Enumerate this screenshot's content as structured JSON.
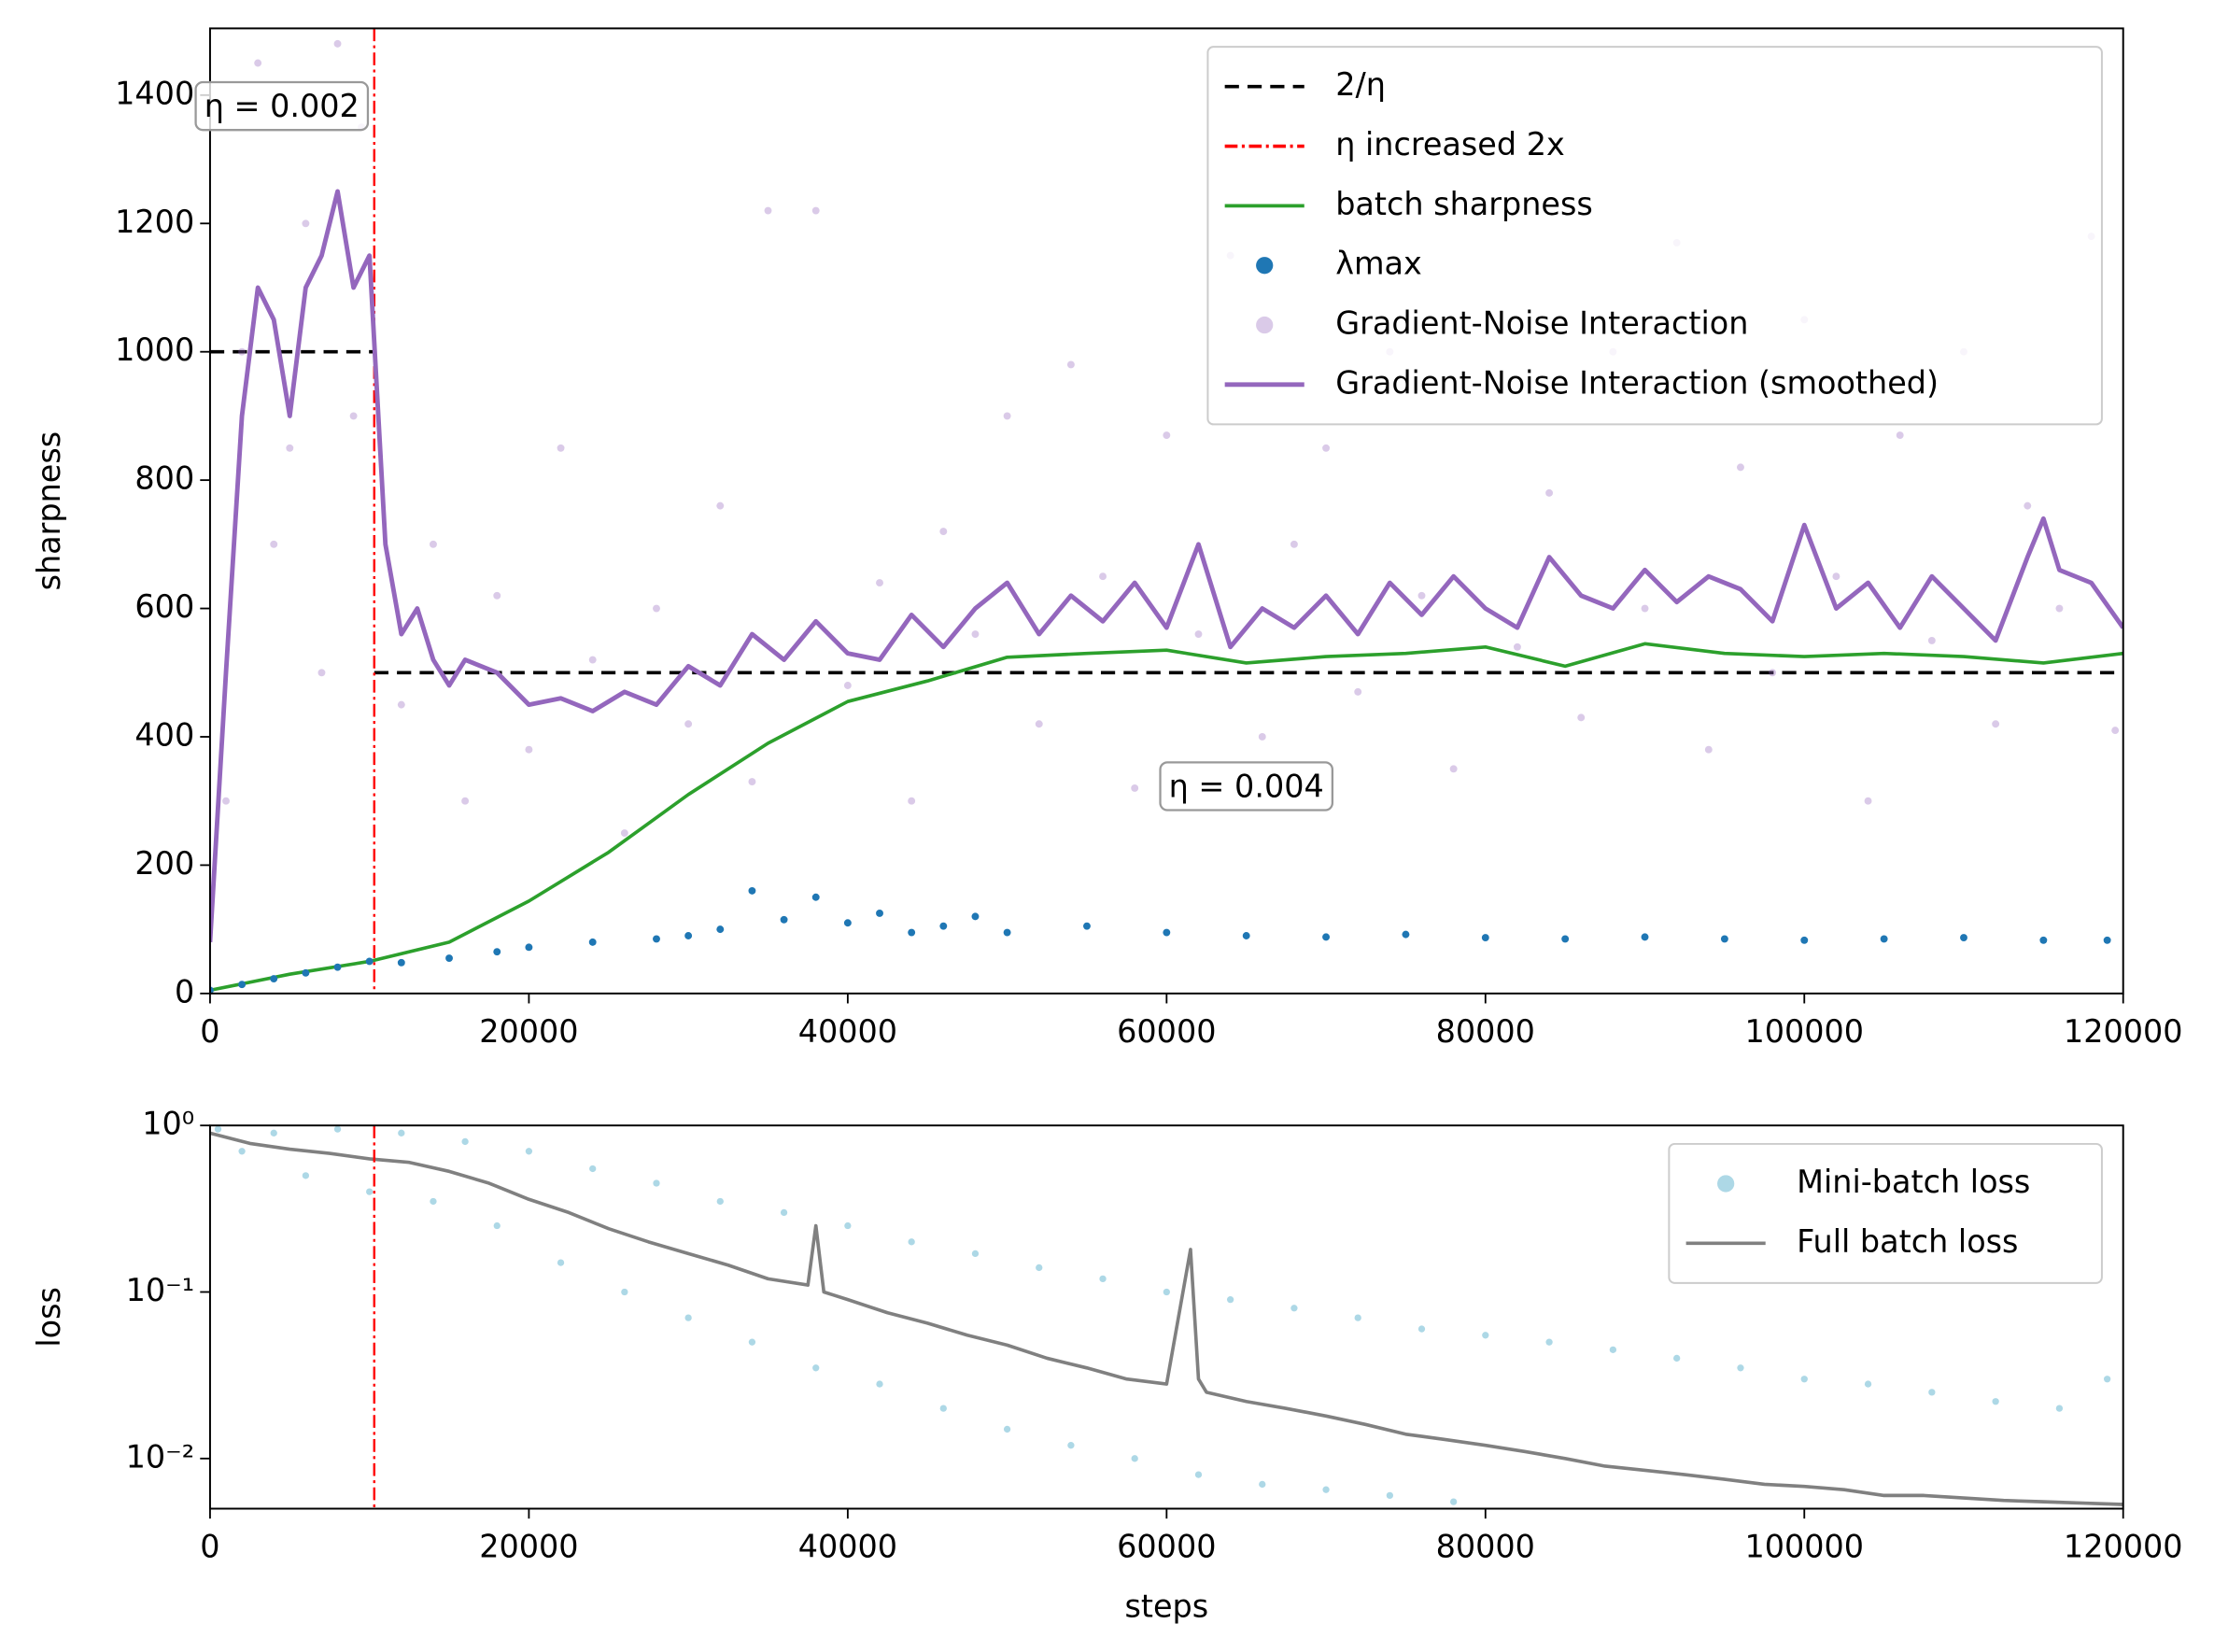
{
  "chart_data": [
    {
      "type": "line",
      "ylabel": "sharpness",
      "xlim": [
        0,
        120000
      ],
      "ylim": [
        0,
        1504
      ],
      "xticks": [
        0,
        20000,
        40000,
        60000,
        80000,
        100000,
        120000
      ],
      "yticks": [
        0,
        200,
        400,
        600,
        800,
        1000,
        1200,
        1400
      ],
      "legend": "upper right",
      "annotations": [
        "η = 0.002",
        "η = 0.004"
      ],
      "series": [
        {
          "name": "2/η",
          "kind": "line",
          "dash": "dashed",
          "color": "#000000",
          "x": [
            0,
            10300,
            10300,
            10300,
            120000
          ],
          "values": [
            1000,
            1000,
            null,
            500,
            500
          ]
        },
        {
          "name": "η increased 2x",
          "kind": "vline",
          "dash": "dashdot",
          "color": "#ff0000",
          "x": 10300
        },
        {
          "name": "batch sharpness",
          "kind": "line",
          "color": "#2ca02c",
          "x": [
            0,
            5000,
            10000,
            15000,
            20000,
            25000,
            30000,
            35000,
            40000,
            45000,
            50000,
            55000,
            60000,
            65000,
            70000,
            75000,
            80000,
            85000,
            90000,
            95000,
            100000,
            105000,
            110000,
            115000,
            120000
          ],
          "values": [
            5,
            30,
            50,
            80,
            144,
            220,
            310,
            390,
            455,
            487,
            524,
            530,
            535,
            515,
            525,
            530,
            540,
            510,
            545,
            530,
            525,
            530,
            525,
            515,
            530
          ]
        },
        {
          "name": "λmax",
          "kind": "scatter",
          "size": 2.6,
          "color": "#1f77b4",
          "x": [
            0,
            2000,
            4000,
            6000,
            8000,
            10000,
            12000,
            15000,
            18000,
            20000,
            24000,
            28000,
            30000,
            32000,
            34000,
            36000,
            38000,
            40000,
            42000,
            44000,
            46000,
            48000,
            50000,
            55000,
            60000,
            65000,
            70000,
            75000,
            80000,
            85000,
            90000,
            95000,
            100000,
            105000,
            110000,
            115000,
            119000
          ],
          "values": [
            5,
            14,
            23,
            32,
            41,
            50,
            48,
            55,
            65,
            72,
            80,
            85,
            90,
            100,
            160,
            115,
            150,
            110,
            125,
            95,
            105,
            120,
            95,
            105,
            95,
            90,
            88,
            92,
            87,
            85,
            88,
            85,
            83,
            85,
            87,
            83,
            83
          ]
        },
        {
          "name": "Gradient-Noise Interaction",
          "kind": "scatter",
          "size": 2.6,
          "color": "#9467bd",
          "opacity": 0.35,
          "x": [
            1000,
            2000,
            3000,
            4000,
            5000,
            6000,
            7000,
            8000,
            9000,
            9500,
            12000,
            14000,
            16000,
            18000,
            20000,
            22000,
            24000,
            26000,
            28000,
            30000,
            32000,
            34000,
            35000,
            38000,
            40000,
            42000,
            44000,
            46000,
            48000,
            50000,
            52000,
            54000,
            56000,
            58000,
            60000,
            62000,
            64000,
            66000,
            68000,
            70000,
            72000,
            74000,
            76000,
            78000,
            80000,
            82000,
            84000,
            86000,
            88000,
            90000,
            92000,
            94000,
            96000,
            98000,
            100000,
            102000,
            104000,
            106000,
            108000,
            110000,
            112000,
            114000,
            116000,
            118000,
            119500
          ],
          "values": [
            300,
            1000,
            1450,
            700,
            850,
            1200,
            500,
            1480,
            900,
            1350,
            450,
            700,
            300,
            620,
            380,
            850,
            520,
            250,
            600,
            420,
            760,
            330,
            1220,
            1220,
            480,
            640,
            300,
            720,
            560,
            900,
            420,
            980,
            650,
            320,
            870,
            560,
            1150,
            400,
            700,
            850,
            470,
            1000,
            620,
            350,
            940,
            540,
            780,
            430,
            1000,
            600,
            1170,
            380,
            820,
            500,
            1050,
            650,
            300,
            870,
            550,
            1000,
            420,
            760,
            600,
            1180,
            410
          ]
        },
        {
          "name": "Gradient-Noise Interaction (smoothed)",
          "kind": "line",
          "width": 3.2,
          "color": "#9467bd",
          "x": [
            0,
            1000,
            2000,
            3000,
            4000,
            5000,
            6000,
            7000,
            8000,
            9000,
            10000,
            11000,
            12000,
            13000,
            14000,
            15000,
            16000,
            18000,
            20000,
            22000,
            24000,
            26000,
            28000,
            30000,
            32000,
            34000,
            36000,
            38000,
            40000,
            42000,
            44000,
            46000,
            48000,
            50000,
            52000,
            54000,
            56000,
            58000,
            60000,
            62000,
            64000,
            66000,
            68000,
            70000,
            72000,
            74000,
            76000,
            78000,
            80000,
            82000,
            84000,
            86000,
            88000,
            90000,
            92000,
            94000,
            96000,
            98000,
            100000,
            102000,
            104000,
            106000,
            108000,
            110000,
            112000,
            114000,
            115000,
            116000,
            118000,
            120000
          ],
          "values": [
            80,
            500,
            900,
            1100,
            1050,
            900,
            1100,
            1150,
            1250,
            1100,
            1150,
            700,
            560,
            600,
            520,
            480,
            520,
            500,
            450,
            460,
            440,
            470,
            450,
            510,
            480,
            560,
            520,
            580,
            530,
            520,
            590,
            540,
            600,
            640,
            560,
            620,
            580,
            640,
            570,
            700,
            540,
            600,
            570,
            620,
            560,
            640,
            590,
            650,
            600,
            570,
            680,
            620,
            600,
            660,
            610,
            650,
            630,
            580,
            730,
            600,
            640,
            570,
            650,
            600,
            550,
            680,
            740,
            660,
            640,
            570
          ]
        }
      ]
    },
    {
      "type": "line",
      "ylabel": "loss",
      "xlabel": "steps",
      "yscale": "log",
      "xlim": [
        0,
        120000
      ],
      "ylim": [
        0.005,
        1
      ],
      "xticks": [
        0,
        20000,
        40000,
        60000,
        80000,
        100000,
        120000
      ],
      "yticks": [
        {
          "value": 1,
          "label": "10⁰"
        },
        {
          "value": 0.1,
          "label": "10⁻¹"
        },
        {
          "value": 0.01,
          "label": "10⁻²"
        }
      ],
      "legend": "upper right",
      "series": [
        {
          "name": "Mini-batch loss",
          "kind": "scatter",
          "size": 2.4,
          "color": "#add8e6",
          "x": [
            500,
            2000,
            4000,
            6000,
            8000,
            10000,
            12000,
            14000,
            16000,
            18000,
            20000,
            22000,
            24000,
            26000,
            28000,
            30000,
            32000,
            34000,
            36000,
            38000,
            40000,
            42000,
            44000,
            46000,
            48000,
            50000,
            52000,
            54000,
            56000,
            58000,
            60000,
            62000,
            64000,
            66000,
            68000,
            70000,
            72000,
            74000,
            76000,
            78000,
            80000,
            84000,
            88000,
            92000,
            96000,
            100000,
            104000,
            108000,
            112000,
            116000,
            119000
          ],
          "values": [
            0.95,
            0.7,
            0.9,
            0.5,
            0.95,
            0.4,
            0.9,
            0.35,
            0.8,
            0.25,
            0.7,
            0.15,
            0.55,
            0.1,
            0.45,
            0.07,
            0.35,
            0.05,
            0.3,
            0.035,
            0.25,
            0.028,
            0.2,
            0.02,
            0.17,
            0.015,
            0.14,
            0.012,
            0.12,
            0.01,
            0.1,
            0.008,
            0.09,
            0.007,
            0.08,
            0.0065,
            0.07,
            0.006,
            0.06,
            0.0055,
            0.055,
            0.05,
            0.045,
            0.04,
            0.035,
            0.03,
            0.028,
            0.025,
            0.022,
            0.02,
            0.03
          ]
        },
        {
          "name": "Full batch loss",
          "kind": "line",
          "width": 2.4,
          "color": "#808080",
          "x": [
            0,
            2500,
            5000,
            7500,
            10000,
            12500,
            15000,
            17500,
            20000,
            22500,
            25000,
            27500,
            30000,
            32500,
            35000,
            37500,
            38000,
            38500,
            40000,
            42500,
            45000,
            47500,
            50000,
            52500,
            55000,
            57500,
            60000,
            61500,
            62000,
            62500,
            65000,
            67500,
            70000,
            72500,
            75000,
            77500,
            80000,
            82500,
            85000,
            87500,
            90000,
            92500,
            95000,
            97500,
            100000,
            102500,
            105000,
            107500,
            110000,
            112500,
            115000,
            117500,
            120000
          ],
          "values": [
            0.9,
            0.78,
            0.72,
            0.68,
            0.63,
            0.6,
            0.53,
            0.45,
            0.36,
            0.3,
            0.24,
            0.2,
            0.17,
            0.145,
            0.12,
            0.11,
            0.25,
            0.1,
            0.09,
            0.075,
            0.065,
            0.055,
            0.048,
            0.04,
            0.035,
            0.03,
            0.028,
            0.18,
            0.03,
            0.025,
            0.022,
            0.02,
            0.018,
            0.016,
            0.014,
            0.013,
            0.012,
            0.011,
            0.01,
            0.009,
            0.0085,
            0.008,
            0.0075,
            0.007,
            0.0068,
            0.0065,
            0.006,
            0.006,
            0.0058,
            0.0056,
            0.0055,
            0.0054,
            0.0053
          ]
        },
        {
          "kind": "vline",
          "dash": "dashdot",
          "color": "#ff0000",
          "x": 10300
        }
      ]
    }
  ]
}
